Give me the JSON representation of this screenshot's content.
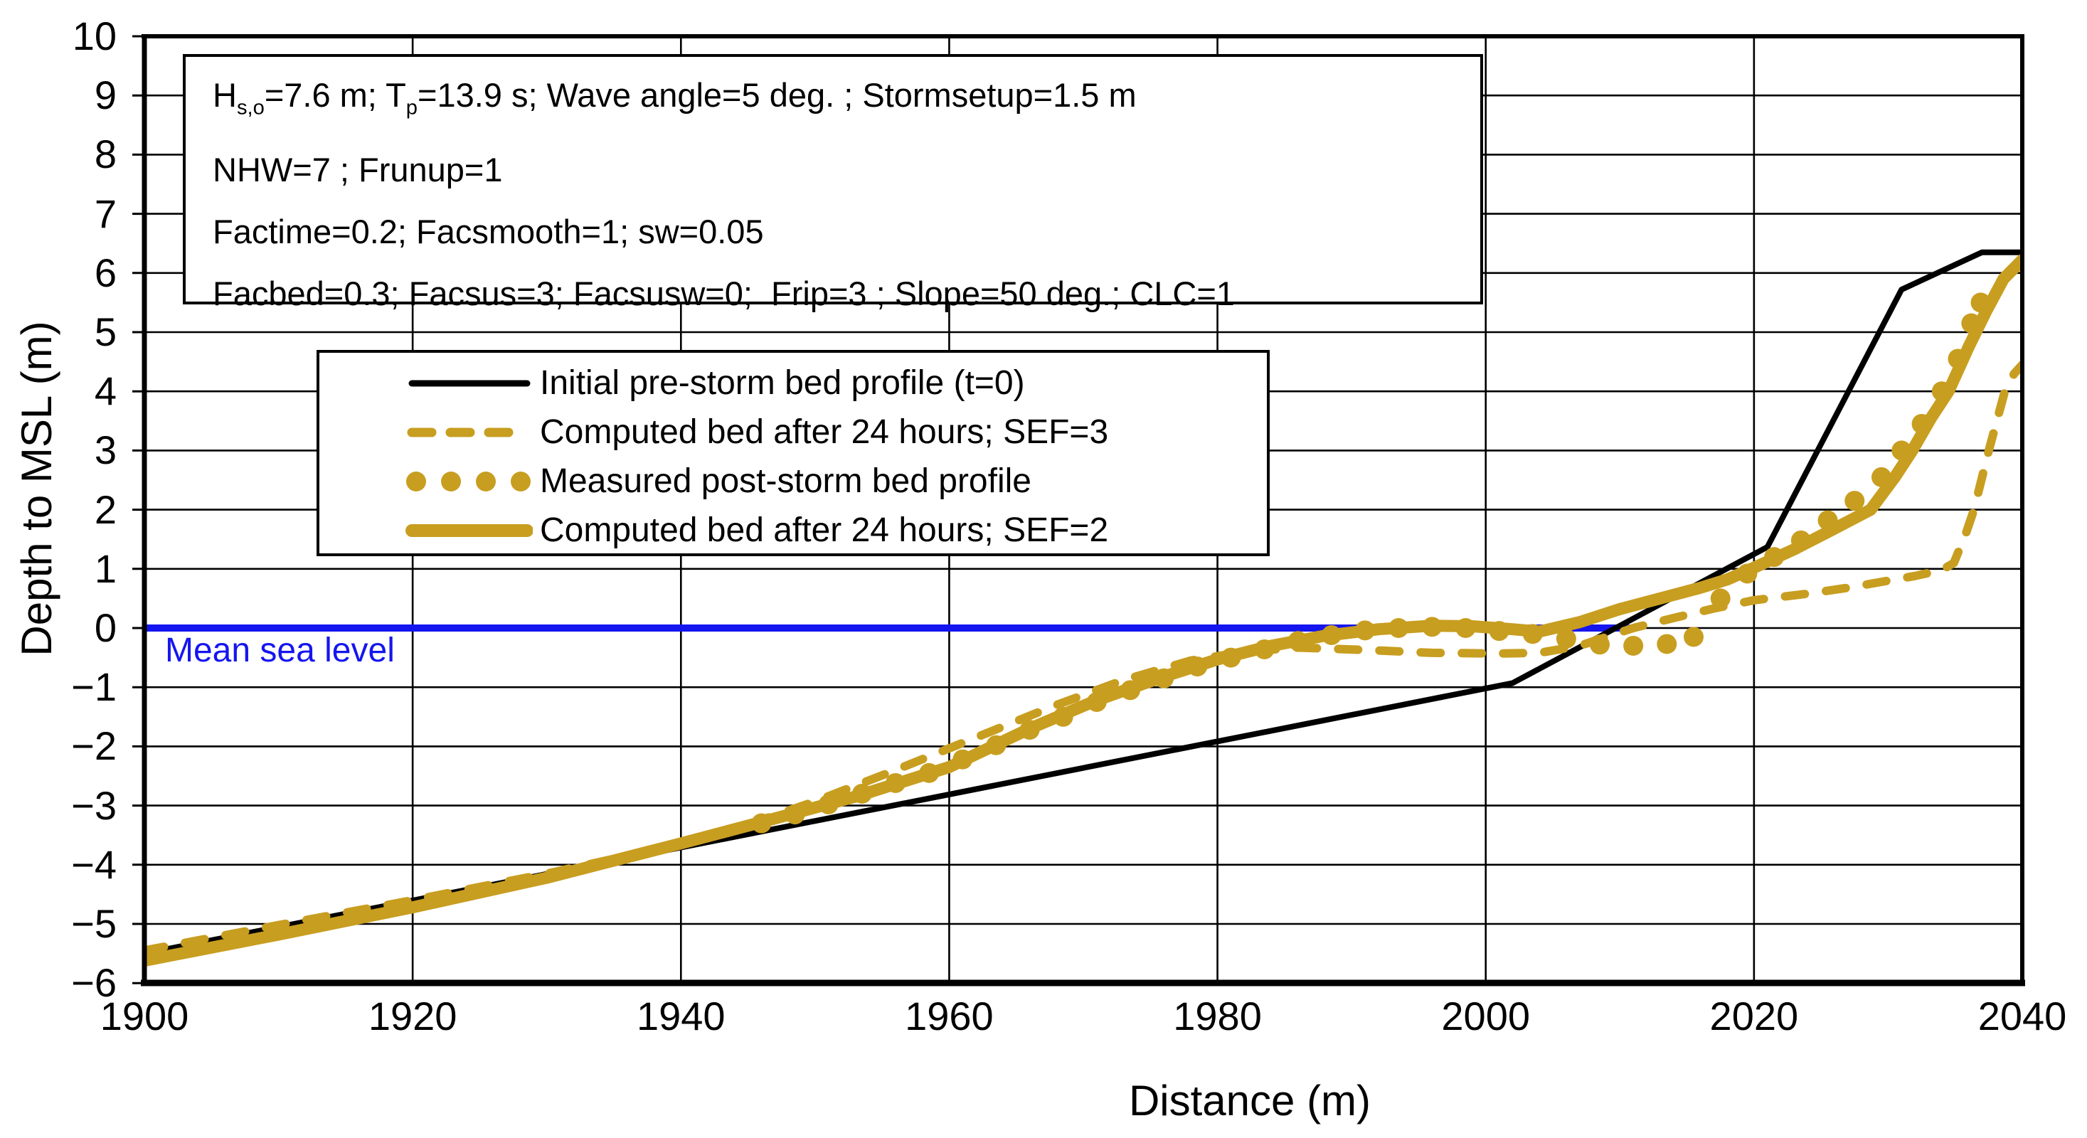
{
  "chart_data": {
    "type": "line",
    "title": "",
    "xlabel": "Distance (m)",
    "ylabel": "Depth to MSL (m)",
    "xlim": [
      1900,
      2040
    ],
    "ylim": [
      -6,
      10
    ],
    "x_ticks": [
      "1900",
      "1920",
      "1940",
      "1960",
      "1980",
      "2000",
      "2020",
      "2040"
    ],
    "x_tick_values": [
      1900,
      1920,
      1940,
      1960,
      1980,
      2000,
      2020,
      2040
    ],
    "y_ticks": [
      "10",
      "9",
      "8",
      "7",
      "6",
      "5",
      "4",
      "3",
      "2",
      "1",
      "0",
      "−1",
      "−2",
      "−3",
      "−4",
      "−5",
      "−6"
    ],
    "y_tick_values": [
      10,
      9,
      8,
      7,
      6,
      5,
      4,
      3,
      2,
      1,
      0,
      -1,
      -2,
      -3,
      -4,
      -5,
      -6
    ],
    "grid": true,
    "legend_position": "upper-left-inside",
    "colors": {
      "gold": "#C89E20",
      "blue": "#1515EF",
      "black": "#000000"
    },
    "msl_label": "Mean sea level",
    "annotation_lines": [
      [
        {
          "t": "H"
        },
        {
          "t": "s,o",
          "sub": true
        },
        {
          "t": "=7.6 m; T"
        },
        {
          "t": "p",
          "sub": true
        },
        {
          "t": "=13.9 s; Wave angle=5 deg. ; Stormsetup=1.5 m"
        }
      ],
      [
        {
          "t": "NHW=7 ; Frunup=1"
        }
      ],
      [
        {
          "t": "Factime=0.2; Facsmooth=1; sw=0.05"
        }
      ],
      [
        {
          "t": "Facbed=0.3; Facsus=3; Facsusw=0;  Frip=3 ; Slope=50 deg.; CLC=1"
        }
      ]
    ],
    "series": [
      {
        "name": "Mean sea level line",
        "in_legend": false,
        "style": "solid",
        "color": "#1515EF",
        "width": 10,
        "points": [
          [
            1900,
            0
          ],
          [
            2011,
            0
          ]
        ]
      },
      {
        "name": "Initial pre-storm bed profile (t=0)",
        "in_legend": true,
        "style": "solid",
        "color": "#000000",
        "width": 8,
        "points": [
          [
            1900,
            -5.5
          ],
          [
            2002,
            -0.93
          ],
          [
            2021,
            1.37
          ],
          [
            2031,
            5.72
          ],
          [
            2037,
            6.35
          ],
          [
            2040,
            6.35
          ]
        ]
      },
      {
        "name": "Computed bed after 24 hours; SEF=3",
        "in_legend": true,
        "style": "dashed",
        "color": "#C89E20",
        "width": 12,
        "points": [
          [
            1900,
            -5.45
          ],
          [
            1910,
            -5.02
          ],
          [
            1920,
            -4.6
          ],
          [
            1930,
            -4.15
          ],
          [
            1938,
            -3.75
          ],
          [
            1944,
            -3.4
          ],
          [
            1950,
            -2.93
          ],
          [
            1956,
            -2.4
          ],
          [
            1962,
            -1.85
          ],
          [
            1968,
            -1.3
          ],
          [
            1973,
            -0.88
          ],
          [
            1978,
            -0.55
          ],
          [
            1982,
            -0.4
          ],
          [
            1986,
            -0.33
          ],
          [
            1991,
            -0.37
          ],
          [
            1996,
            -0.42
          ],
          [
            2001,
            -0.43
          ],
          [
            2004,
            -0.42
          ],
          [
            2007,
            -0.3
          ],
          [
            2011,
            0
          ],
          [
            2014,
            0.17
          ],
          [
            2017,
            0.33
          ],
          [
            2020,
            0.47
          ],
          [
            2024,
            0.58
          ],
          [
            2027,
            0.68
          ],
          [
            2030,
            0.8
          ],
          [
            2032,
            0.88
          ],
          [
            2034,
            0.98
          ],
          [
            2034.9,
            1.1
          ],
          [
            2035.8,
            1.6
          ],
          [
            2036.4,
            2.0
          ],
          [
            2037.5,
            3.0
          ],
          [
            2038.7,
            4.0
          ],
          [
            2039.4,
            4.3
          ],
          [
            2040,
            4.45
          ]
        ]
      },
      {
        "name": "Measured post-storm bed profile",
        "in_legend": true,
        "style": "dots",
        "color": "#C89E20",
        "radius": 14,
        "points": [
          [
            1946,
            -3.3
          ],
          [
            1948.5,
            -3.15
          ],
          [
            1951,
            -2.98
          ],
          [
            1953.5,
            -2.8
          ],
          [
            1956,
            -2.62
          ],
          [
            1958.5,
            -2.45
          ],
          [
            1961,
            -2.22
          ],
          [
            1963.5,
            -1.98
          ],
          [
            1966,
            -1.72
          ],
          [
            1968.5,
            -1.5
          ],
          [
            1971,
            -1.25
          ],
          [
            1973.5,
            -1.05
          ],
          [
            1976,
            -0.85
          ],
          [
            1978.5,
            -0.65
          ],
          [
            1981,
            -0.5
          ],
          [
            1983.5,
            -0.36
          ],
          [
            1986,
            -0.22
          ],
          [
            1988.5,
            -0.12
          ],
          [
            1991,
            -0.04
          ],
          [
            1993.5,
            0.0
          ],
          [
            1996,
            0.02
          ],
          [
            1998.5,
            0.0
          ],
          [
            2001,
            -0.05
          ],
          [
            2003.5,
            -0.1
          ],
          [
            2006,
            -0.18
          ],
          [
            2008.5,
            -0.28
          ],
          [
            2011,
            -0.3
          ],
          [
            2013.5,
            -0.27
          ],
          [
            2015.5,
            -0.15
          ],
          [
            2017.5,
            0.5
          ],
          [
            2019.5,
            0.92
          ],
          [
            2021.5,
            1.2
          ],
          [
            2023.5,
            1.48
          ],
          [
            2025.5,
            1.82
          ],
          [
            2027.5,
            2.15
          ],
          [
            2029.5,
            2.55
          ],
          [
            2031,
            3.0
          ],
          [
            2032.5,
            3.45
          ],
          [
            2034,
            4.0
          ],
          [
            2035.2,
            4.55
          ],
          [
            2036.2,
            5.15
          ],
          [
            2036.9,
            5.5
          ]
        ]
      },
      {
        "name": "Computed bed after 24 hours; SEF=2",
        "in_legend": true,
        "style": "solid",
        "color": "#C89E20",
        "width": 17,
        "points": [
          [
            1900,
            -5.62
          ],
          [
            1910,
            -5.18
          ],
          [
            1920,
            -4.72
          ],
          [
            1930,
            -4.22
          ],
          [
            1940,
            -3.64
          ],
          [
            1946,
            -3.28
          ],
          [
            1953,
            -2.85
          ],
          [
            1960,
            -2.35
          ],
          [
            1966,
            -1.7
          ],
          [
            1971,
            -1.22
          ],
          [
            1976,
            -0.82
          ],
          [
            1980,
            -0.53
          ],
          [
            1984,
            -0.3
          ],
          [
            1988,
            -0.13
          ],
          [
            1992,
            -0.02
          ],
          [
            1996,
            0.04
          ],
          [
            1999,
            0.03
          ],
          [
            2002,
            -0.02
          ],
          [
            2004,
            -0.06
          ],
          [
            2007,
            0.1
          ],
          [
            2010,
            0.32
          ],
          [
            2013,
            0.5
          ],
          [
            2016,
            0.68
          ],
          [
            2018,
            0.82
          ],
          [
            2020,
            1.02
          ],
          [
            2023,
            1.33
          ],
          [
            2026,
            1.68
          ],
          [
            2028.7,
            2.0
          ],
          [
            2030.5,
            2.55
          ],
          [
            2031.8,
            3.0
          ],
          [
            2033.2,
            3.55
          ],
          [
            2034.5,
            4.0
          ],
          [
            2036,
            4.75
          ],
          [
            2037.3,
            5.35
          ],
          [
            2038.6,
            5.9
          ],
          [
            2040,
            6.22
          ]
        ]
      }
    ]
  }
}
